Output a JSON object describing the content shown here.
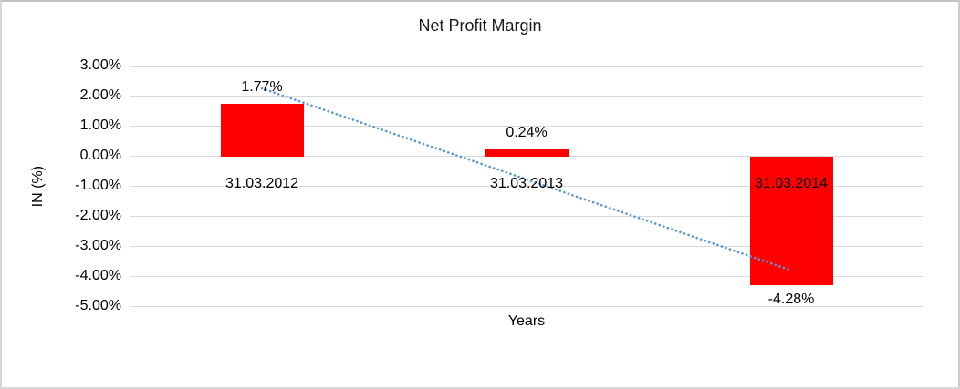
{
  "chart_data": {
    "type": "bar",
    "title": "Net Profit Margin",
    "xlabel": "Years",
    "ylabel": "IN (%)",
    "categories": [
      "31.03.2012",
      "31.03.2013",
      "31.03.2014"
    ],
    "values": [
      1.77,
      0.24,
      -4.28
    ],
    "data_labels": [
      "1.77%",
      "0.24%",
      "-4.28%"
    ],
    "ylim": [
      -5,
      3
    ],
    "ytick_step": 1,
    "ytick_labels": [
      "3.00%",
      "2.00%",
      "1.00%",
      "0.00%",
      "-1.00%",
      "-2.00%",
      "-3.00%",
      "-4.00%",
      "-5.00%"
    ],
    "grid": true,
    "legend": "none",
    "bar_color": "#FF0000",
    "gridline_color": "#D9D9D9",
    "text_color": "#000000",
    "trendline": {
      "type": "linear",
      "style": "dotted",
      "color": "#5B96D2",
      "start_value": 2.27,
      "end_value": -3.78
    }
  }
}
